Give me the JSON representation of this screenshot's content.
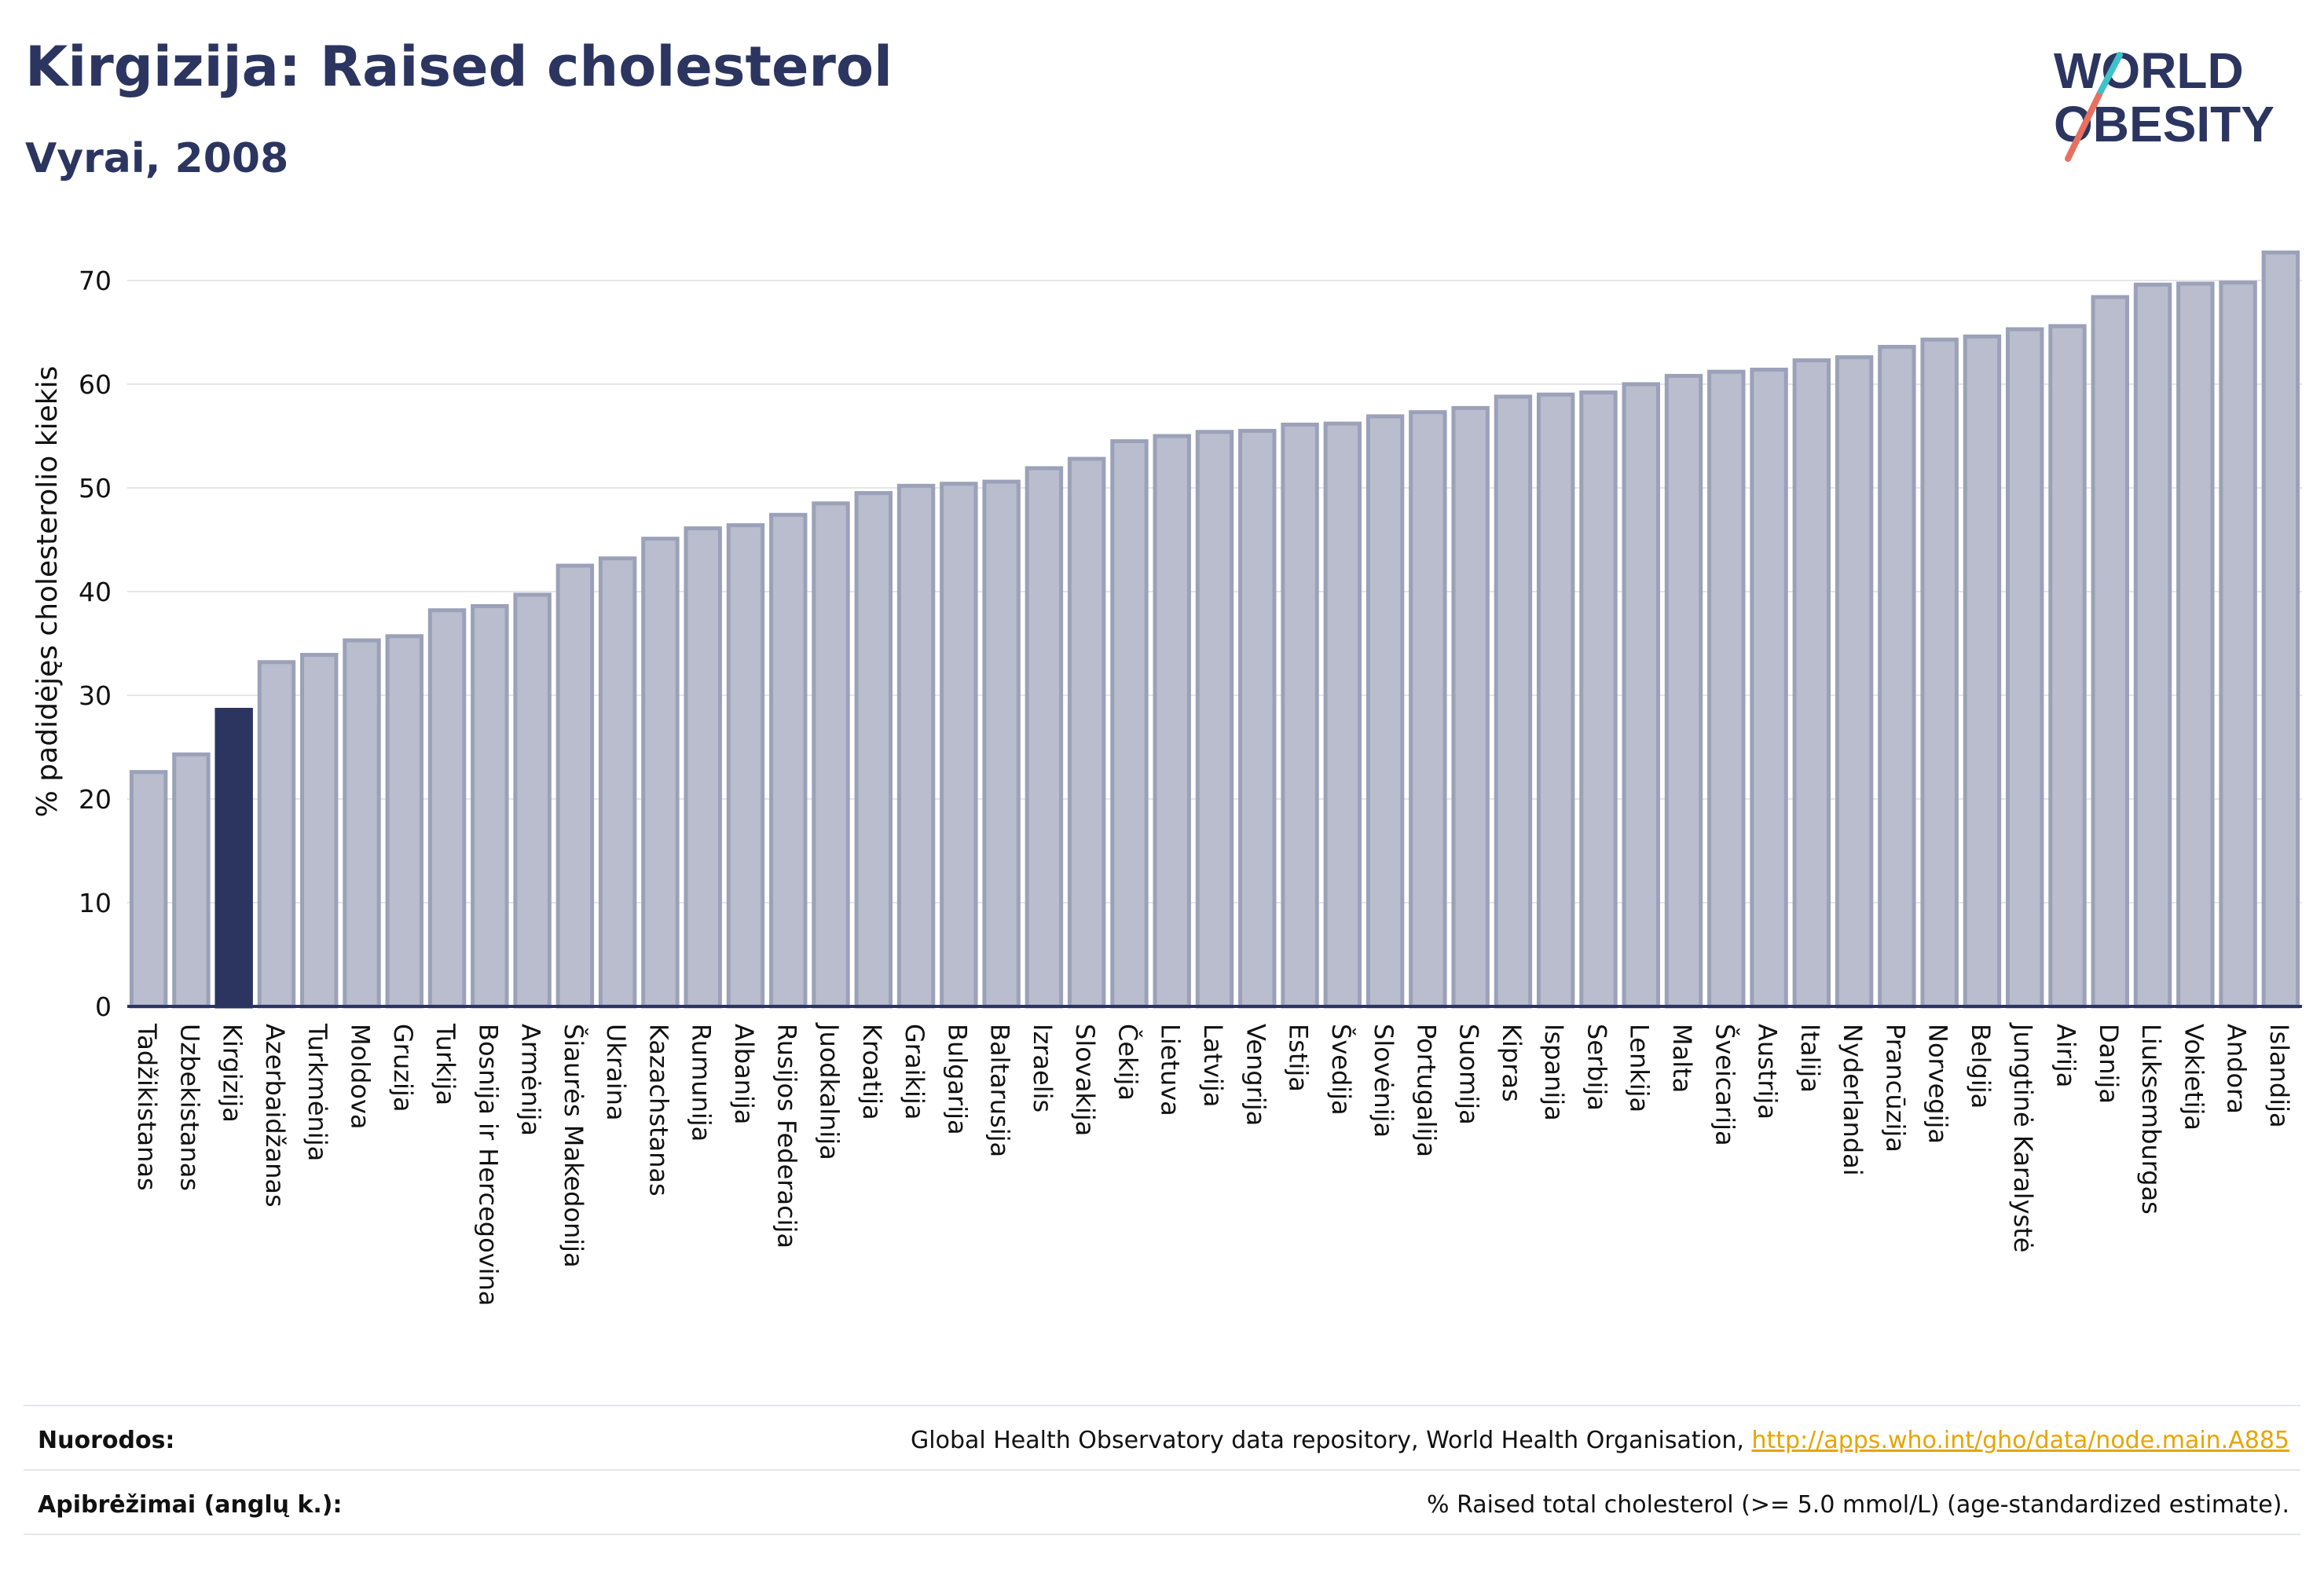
{
  "header": {
    "title": "Kirgizija: Raised cholesterol",
    "subtitle": "Vyrai, 2008"
  },
  "logo": {
    "line1": "WORLD",
    "line2": "OBESITY",
    "text_color": "#2b3560",
    "slash_colors": [
      "#e8705e",
      "#3fc1c9"
    ]
  },
  "colors": {
    "bar": "#b9bdcd",
    "bar_border": "#9ba1b8",
    "highlight": "#2b3560",
    "axis": "#2b3560",
    "grid": "#e6e6ea"
  },
  "chart_data": {
    "type": "bar",
    "title": "Kirgizija: Raised cholesterol",
    "subtitle": "Vyrai, 2008",
    "ylabel": "% padidėjęs cholesterolio kiekis",
    "xlabel": "",
    "ylim": [
      0,
      75
    ],
    "yticks": [
      0,
      10,
      20,
      30,
      40,
      50,
      60,
      70
    ],
    "grid": true,
    "highlight": "Kirgizija",
    "categories": [
      "Tadžikistanas",
      "Uzbekistanas",
      "Kirgizija",
      "Azerbaidžanas",
      "Turkmėnija",
      "Moldova",
      "Gruzija",
      "Turkija",
      "Bosnija ir Hercegovina",
      "Armėnija",
      "Šiaurės Makedonija",
      "Ukraina",
      "Kazachstanas",
      "Rumunija",
      "Albanija",
      "Rusijos Federacija",
      "Juodkalnija",
      "Kroatija",
      "Graikija",
      "Bulgarija",
      "Baltarusija",
      "Izraelis",
      "Slovakija",
      "Čekija",
      "Lietuva",
      "Latvija",
      "Vengrija",
      "Estija",
      "Švedija",
      "Slovėnija",
      "Portugalija",
      "Suomija",
      "Kipras",
      "Ispanija",
      "Serbija",
      "Lenkija",
      "Malta",
      "Šveicarija",
      "Austrija",
      "Italija",
      "Nyderlandai",
      "Prancūzija",
      "Norvegija",
      "Belgija",
      "Jungtinė Karalystė",
      "Airija",
      "Danija",
      "Liuksemburgas",
      "Vokietija",
      "Andora",
      "Islandija"
    ],
    "values": [
      22.6,
      24.3,
      28.6,
      33.2,
      33.9,
      35.3,
      35.7,
      38.2,
      38.6,
      39.7,
      42.5,
      43.2,
      45.1,
      46.1,
      46.4,
      47.4,
      48.5,
      49.5,
      50.2,
      50.4,
      50.6,
      51.9,
      52.8,
      54.5,
      55.0,
      55.4,
      55.5,
      56.1,
      56.2,
      56.9,
      57.3,
      57.7,
      58.8,
      59.0,
      59.2,
      60.0,
      60.8,
      61.2,
      61.4,
      62.3,
      62.6,
      63.6,
      64.3,
      64.6,
      65.3,
      65.6,
      68.4,
      69.6,
      69.7,
      69.8,
      72.7
    ]
  },
  "footer": {
    "sources_label": "Nuorodos:",
    "sources_text": "Global Health Observatory data repository, World Health Organisation, ",
    "sources_link": "http://apps.who.int/gho/data/node.main.A885",
    "definitions_label": "Apibrėžimai (anglų k.):",
    "definitions_text": "% Raised total cholesterol (>= 5.0 mmol/L) (age-standardized estimate)."
  }
}
